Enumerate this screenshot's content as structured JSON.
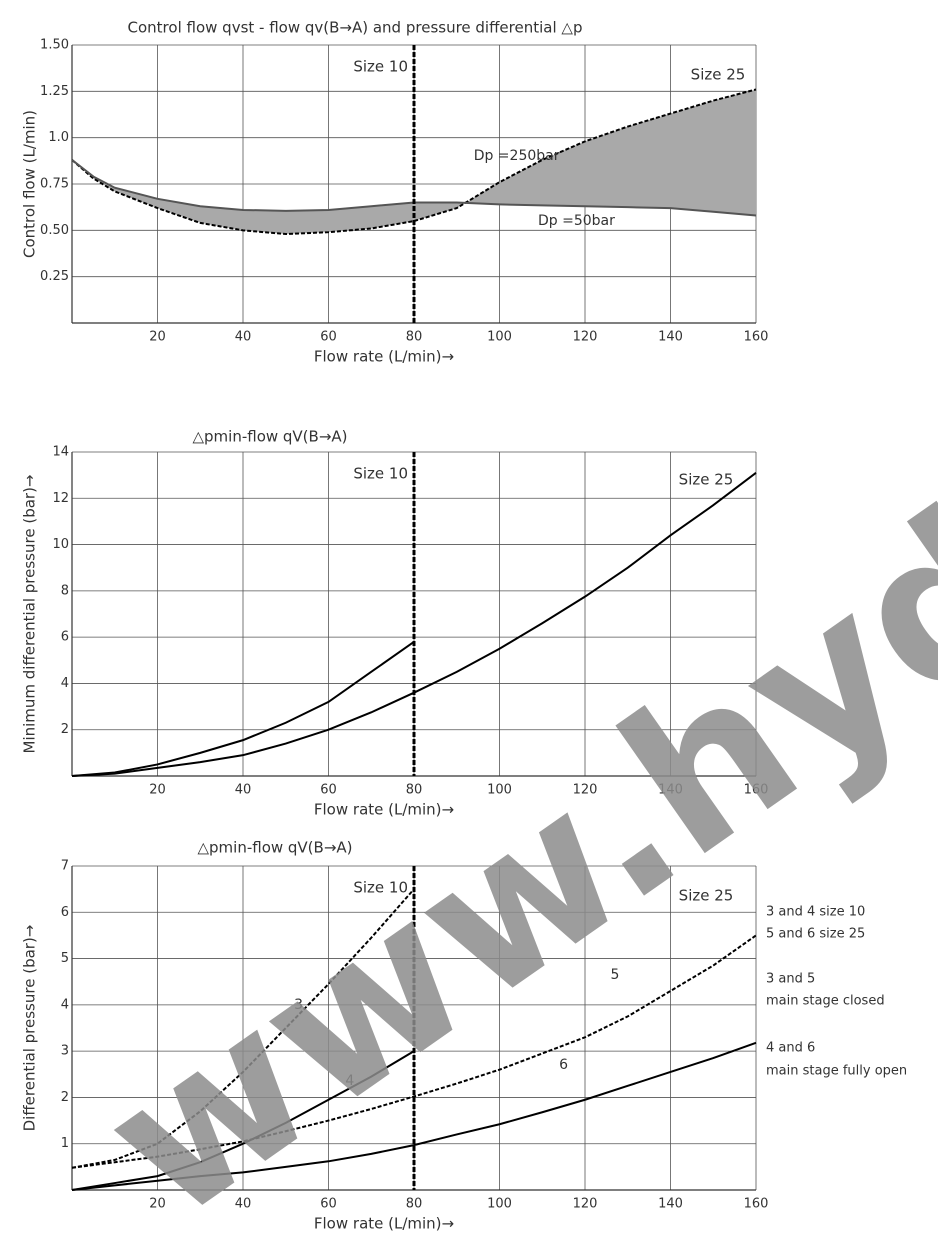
{
  "watermark": "www.hyd",
  "chart_data": [
    {
      "type": "line",
      "title": "Control flow qvst - flow qv(B→A) and pressure differential △p",
      "x_label": "Flow rate (L/min)→",
      "y_label": "Control flow (L/min)",
      "xlim": [
        0,
        160
      ],
      "xticks": [
        20,
        40,
        60,
        80,
        100,
        120,
        140,
        160
      ],
      "ylim": [
        0,
        1.5
      ],
      "yticks": [
        0.25,
        {
          "value": 0.5,
          "label": "0.50"
        },
        0.75,
        {
          "value": 1,
          "label": "1.0"
        },
        1.25,
        {
          "value": 1.5,
          "label": "1.50"
        }
      ],
      "grid": true,
      "vline": 80,
      "annotations": [
        "Size 10",
        "Size 25"
      ],
      "fill_between": true,
      "fill_color": "#a9a9a9",
      "x": [
        0,
        5,
        10,
        20,
        30,
        40,
        50,
        60,
        70,
        80,
        90,
        100,
        110,
        120,
        130,
        140,
        150,
        160
      ],
      "series": [
        {
          "name": "Dp =250bar",
          "color": "#000000",
          "dash": true,
          "values": [
            0.88,
            0.78,
            0.71,
            0.62,
            0.54,
            0.5,
            0.48,
            0.49,
            0.51,
            0.55,
            0.62,
            0.76,
            0.88,
            0.98,
            1.06,
            1.13,
            1.2,
            1.26
          ]
        },
        {
          "name": "Dp =50bar",
          "color": "#555555",
          "dash": false,
          "values": [
            0.88,
            0.79,
            0.73,
            0.67,
            0.63,
            0.61,
            0.605,
            0.61,
            0.63,
            0.65,
            0.65,
            0.64,
            0.635,
            0.63,
            0.625,
            0.62,
            0.6,
            0.58
          ]
        }
      ]
    },
    {
      "type": "line",
      "title": "△pmin-flow qV(B→A)",
      "x_label": "Flow rate (L/min)→",
      "y_label": "Minimum differential pressure (bar)→",
      "xlim": [
        0,
        160
      ],
      "xticks": [
        20,
        40,
        60,
        80,
        100,
        120,
        140,
        160
      ],
      "ylim": [
        0,
        14
      ],
      "yticks": [
        2,
        4,
        6,
        8,
        10,
        12,
        14
      ],
      "grid": true,
      "vline": 80,
      "annotations": [
        "Size 10",
        "Size 25"
      ],
      "x": [
        0,
        10,
        20,
        30,
        40,
        50,
        60,
        70,
        80,
        90,
        100,
        110,
        120,
        130,
        140,
        150,
        160
      ],
      "series": [
        {
          "color": "#000000",
          "dash": false,
          "values": [
            0,
            0.15,
            0.5,
            1.0,
            1.55,
            2.3,
            3.2,
            4.5,
            5.8,
            null,
            null,
            null,
            null,
            null,
            null,
            null,
            null
          ]
        },
        {
          "color": "#000000",
          "dash": false,
          "values": [
            0,
            0.1,
            0.35,
            0.6,
            0.9,
            1.4,
            2.0,
            2.75,
            3.6,
            4.5,
            5.5,
            6.6,
            7.75,
            9.0,
            10.4,
            11.7,
            13.1
          ]
        }
      ]
    },
    {
      "type": "line",
      "title": "△pmin-flow qV(B→A)",
      "x_label": "Flow rate (L/min)→",
      "y_label": "Differential pressure (bar)→",
      "xlim": [
        0,
        160
      ],
      "xticks": [
        20,
        40,
        60,
        80,
        100,
        120,
        140,
        160
      ],
      "ylim": [
        0,
        7
      ],
      "yticks": [
        1,
        2,
        3,
        4,
        5,
        6,
        7
      ],
      "grid": true,
      "vline": 80,
      "annotations": [
        "Size 10",
        "Size 25"
      ],
      "notes": [
        "3 and 4 size 10",
        "5 and 6 size 25",
        "3 and 5",
        "main stage closed",
        "4 and 6",
        "main stage fully open"
      ],
      "x": [
        0,
        10,
        20,
        30,
        40,
        50,
        60,
        70,
        80,
        90,
        100,
        110,
        120,
        130,
        140,
        150,
        160
      ],
      "series": [
        {
          "name": "3",
          "color": "#000000",
          "dash": true,
          "values": [
            0.48,
            0.65,
            1.0,
            1.7,
            2.55,
            3.5,
            4.45,
            5.45,
            6.5,
            null,
            null,
            null,
            null,
            null,
            null,
            null,
            null
          ]
        },
        {
          "name": "4",
          "color": "#000000",
          "dash": false,
          "values": [
            0,
            0.15,
            0.3,
            0.6,
            1.0,
            1.45,
            1.95,
            2.45,
            3.0,
            null,
            null,
            null,
            null,
            null,
            null,
            null,
            null
          ]
        },
        {
          "name": "5",
          "color": "#000000",
          "dash": true,
          "values": [
            0.48,
            0.6,
            0.72,
            0.88,
            1.05,
            1.27,
            1.5,
            1.75,
            2.02,
            2.3,
            2.6,
            2.95,
            3.3,
            3.75,
            4.3,
            4.85,
            5.5
          ]
        },
        {
          "name": "6",
          "color": "#000000",
          "dash": false,
          "values": [
            0,
            0.1,
            0.2,
            0.3,
            0.38,
            0.5,
            0.62,
            0.78,
            0.97,
            1.2,
            1.42,
            1.68,
            1.95,
            2.25,
            2.55,
            2.85,
            3.18
          ]
        }
      ]
    }
  ]
}
